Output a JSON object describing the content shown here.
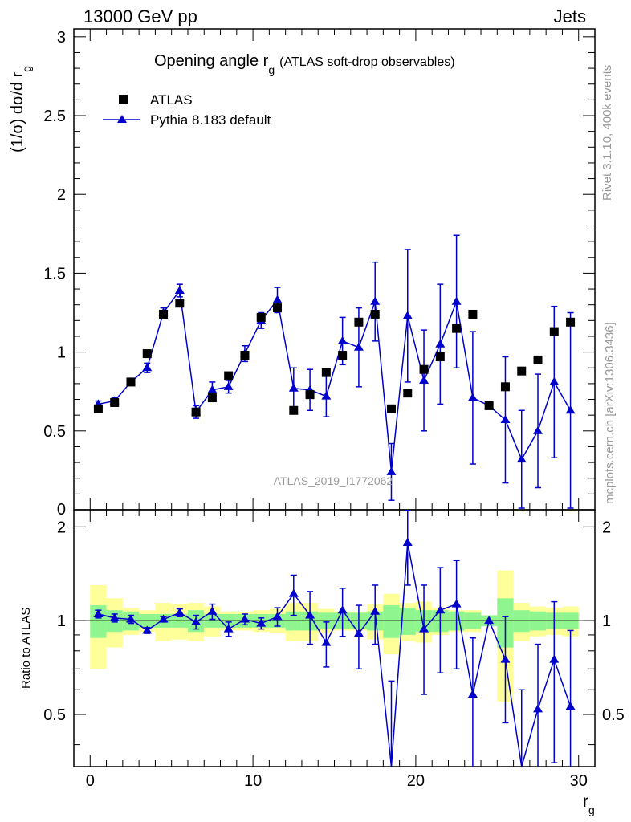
{
  "header": {
    "left": "13000 GeV pp",
    "right": "Jets"
  },
  "side": {
    "rivet": "Rivet 3.1.10,  400k events",
    "mcplots": "mcplots.cern.ch [arXiv:1306.3436]"
  },
  "watermark": "ATLAS_2019_I1772062",
  "chart_data": {
    "type": "scatter",
    "title": "Opening angle r_g (ATLAS soft-drop observables)",
    "title_main": "Opening angle r",
    "title_sub": "g",
    "title_rest": "(ATLAS soft-drop observables)",
    "xlabel": "r",
    "xlabel_sub": "g",
    "ylabel": "(1/σ) dσ/d r_g",
    "ylabel_main": "(1/σ) dσ/d r",
    "ylabel_sub": "g",
    "ratio_ylabel": "Ratio to ATLAS",
    "xlim": [
      -1,
      31
    ],
    "ylim": [
      0,
      3.05
    ],
    "ratio_ylim": [
      0.34,
      2.27
    ],
    "xticks": [
      0,
      10,
      20,
      30
    ],
    "yticks": [
      0.5,
      1,
      1.5,
      2,
      2.5,
      3
    ],
    "ytick_labels": [
      "0.5",
      "1",
      "1.5",
      "2",
      "2.5",
      "3"
    ],
    "ratio_yticks": [
      0.5,
      1,
      2
    ],
    "ratio_ytick_labels": [
      "0.5",
      "1",
      "2"
    ],
    "legend": [
      "ATLAS",
      "Pythia 8.183 default"
    ],
    "colors": {
      "data": "#000000",
      "mc": "#0000cc",
      "band_inner": "#8ff58f",
      "band_outer": "#ffff99"
    },
    "x": [
      0.5,
      1.5,
      2.5,
      3.5,
      4.5,
      5.5,
      6.5,
      7.5,
      8.5,
      9.5,
      10.5,
      11.5,
      12.5,
      13.5,
      14.5,
      15.5,
      16.5,
      17.5,
      18.5,
      19.5,
      20.5,
      21.5,
      22.5,
      23.5,
      24.5,
      25.5,
      26.5,
      27.5,
      28.5,
      29.5
    ],
    "data_y": [
      0.64,
      0.68,
      0.81,
      0.99,
      1.24,
      1.31,
      0.62,
      0.71,
      0.85,
      0.98,
      1.22,
      1.28,
      0.63,
      0.73,
      0.87,
      0.98,
      1.19,
      1.24,
      0.64,
      0.74,
      0.89,
      0.97,
      1.15,
      1.24,
      0.66,
      0.78,
      0.88,
      0.95,
      1.13,
      1.19
    ],
    "mc_y": [
      0.67,
      0.69,
      0.81,
      0.9,
      1.25,
      1.39,
      0.62,
      0.76,
      0.78,
      0.99,
      1.2,
      1.33,
      0.77,
      0.76,
      0.72,
      1.07,
      1.03,
      1.32,
      0.24,
      1.23,
      0.82,
      1.05,
      1.32,
      0.71,
      0.66,
      0.57,
      0.32,
      0.5,
      0.81,
      0.63
    ],
    "mc_err": [
      0.02,
      0.02,
      0.02,
      0.03,
      0.03,
      0.04,
      0.04,
      0.05,
      0.04,
      0.05,
      0.05,
      0.08,
      0.13,
      0.13,
      0.13,
      0.15,
      0.25,
      0.25,
      0.18,
      0.42,
      0.32,
      0.38,
      0.42,
      0.42,
      0.02,
      0.4,
      0.31,
      0.36,
      0.48,
      0.62
    ],
    "ratio_y": [
      1.05,
      1.02,
      1.01,
      0.93,
      1.01,
      1.06,
      0.99,
      1.07,
      0.94,
      1.01,
      0.98,
      1.03,
      1.22,
      1.04,
      0.85,
      1.08,
      0.91,
      1.07,
      0.3,
      1.78,
      0.94,
      1.08,
      1.13,
      0.58,
      1.0,
      0.75,
      0.3,
      0.52,
      0.75,
      0.53
    ],
    "ratio_err": [
      0.03,
      0.03,
      0.03,
      0.02,
      0.02,
      0.03,
      0.05,
      0.06,
      0.05,
      0.04,
      0.04,
      0.07,
      0.18,
      0.2,
      0.14,
      0.19,
      0.21,
      0.23,
      0.34,
      0.48,
      0.36,
      0.4,
      0.43,
      0.3,
      0.0,
      0.28,
      0.3,
      0.32,
      0.4,
      0.4
    ],
    "band_inner": [
      0.12,
      0.08,
      0.07,
      0.05,
      0.05,
      0.05,
      0.08,
      0.05,
      0.05,
      0.05,
      0.05,
      0.05,
      0.07,
      0.07,
      0.06,
      0.06,
      0.06,
      0.07,
      0.12,
      0.1,
      0.08,
      0.08,
      0.07,
      0.06,
      0.04,
      0.18,
      0.08,
      0.07,
      0.06,
      0.06
    ],
    "band_outer": [
      0.3,
      0.18,
      0.1,
      0.08,
      0.14,
      0.13,
      0.14,
      0.11,
      0.07,
      0.07,
      0.08,
      0.09,
      0.14,
      0.14,
      0.09,
      0.07,
      0.07,
      0.13,
      0.22,
      0.14,
      0.15,
      0.1,
      0.08,
      0.08,
      0.04,
      0.45,
      0.14,
      0.11,
      0.1,
      0.11
    ]
  }
}
